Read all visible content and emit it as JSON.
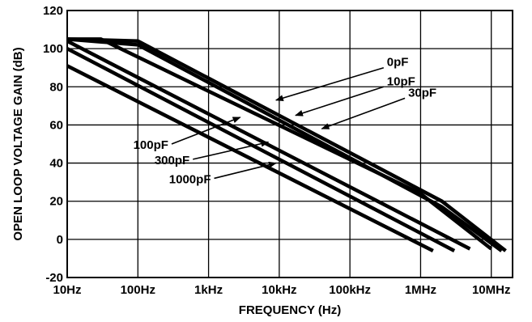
{
  "chart_data": {
    "type": "line",
    "title": "",
    "xlabel": "FREQUENCY (Hz)",
    "ylabel": "OPEN LOOP VOLTAGE GAIN (dB)",
    "xscale": "log",
    "xlim": [
      10,
      20000000
    ],
    "ylim": [
      -20,
      120
    ],
    "grid": true,
    "xticks": [
      {
        "value": 10,
        "label": "10Hz"
      },
      {
        "value": 100,
        "label": "100Hz"
      },
      {
        "value": 1000,
        "label": "1kHz"
      },
      {
        "value": 10000,
        "label": "10kHz"
      },
      {
        "value": 100000,
        "label": "100kHz"
      },
      {
        "value": 1000000,
        "label": "1MHz"
      },
      {
        "value": 10000000,
        "label": "10MHz"
      }
    ],
    "yticks": [
      {
        "value": -20,
        "label": "-20"
      },
      {
        "value": 0,
        "label": "0"
      },
      {
        "value": 20,
        "label": "20"
      },
      {
        "value": 40,
        "label": "40"
      },
      {
        "value": 60,
        "label": "60"
      },
      {
        "value": 80,
        "label": "80"
      },
      {
        "value": 100,
        "label": "100"
      },
      {
        "value": 120,
        "label": "120"
      }
    ],
    "series": [
      {
        "name": "0pF",
        "points": [
          [
            10,
            105
          ],
          [
            100,
            104
          ],
          [
            2000000,
            20
          ],
          [
            16000000,
            -6
          ]
        ]
      },
      {
        "name": "10pF",
        "points": [
          [
            10,
            105
          ],
          [
            100,
            102
          ],
          [
            2000000,
            17
          ],
          [
            14000000,
            -6
          ]
        ]
      },
      {
        "name": "30pF",
        "points": [
          [
            10,
            105
          ],
          [
            30,
            105
          ],
          [
            1000000,
            24
          ],
          [
            10000000,
            -5
          ]
        ]
      },
      {
        "name": "100pF",
        "points": [
          [
            10,
            104
          ],
          [
            5000000,
            -5
          ]
        ]
      },
      {
        "name": "300pF",
        "points": [
          [
            10,
            100
          ],
          [
            3000000,
            -6
          ]
        ]
      },
      {
        "name": "1000pF",
        "points": [
          [
            10,
            91
          ],
          [
            1500000,
            -6
          ]
        ]
      }
    ],
    "annotations": [
      {
        "text": "0pF",
        "label_at": [
          3000,
          88
        ],
        "arrow_from": [
          300000,
          90
        ],
        "arrow_to": [
          9000,
          73
        ]
      },
      {
        "text": "10pF",
        "label_at": [
          3000,
          78
        ],
        "arrow_from": [
          300000,
          80
        ],
        "arrow_to": [
          17000,
          65
        ]
      },
      {
        "text": "30pF",
        "label_at": [
          3000,
          72
        ],
        "arrow_from": [
          600000,
          74
        ],
        "arrow_to": [
          40000,
          58
        ]
      },
      {
        "text": "100pF",
        "label_at": [
          3000,
          46
        ],
        "arrow_from": [
          300,
          50
        ],
        "arrow_to": [
          2800,
          64
        ]
      },
      {
        "text": "300pF",
        "label_at": [
          3000,
          38
        ],
        "arrow_from": [
          600,
          42
        ],
        "arrow_to": [
          7000,
          51
        ]
      },
      {
        "text": "1000pF",
        "label_at": [
          3000,
          28
        ],
        "arrow_from": [
          1200,
          32
        ],
        "arrow_to": [
          9000,
          40
        ]
      }
    ]
  }
}
